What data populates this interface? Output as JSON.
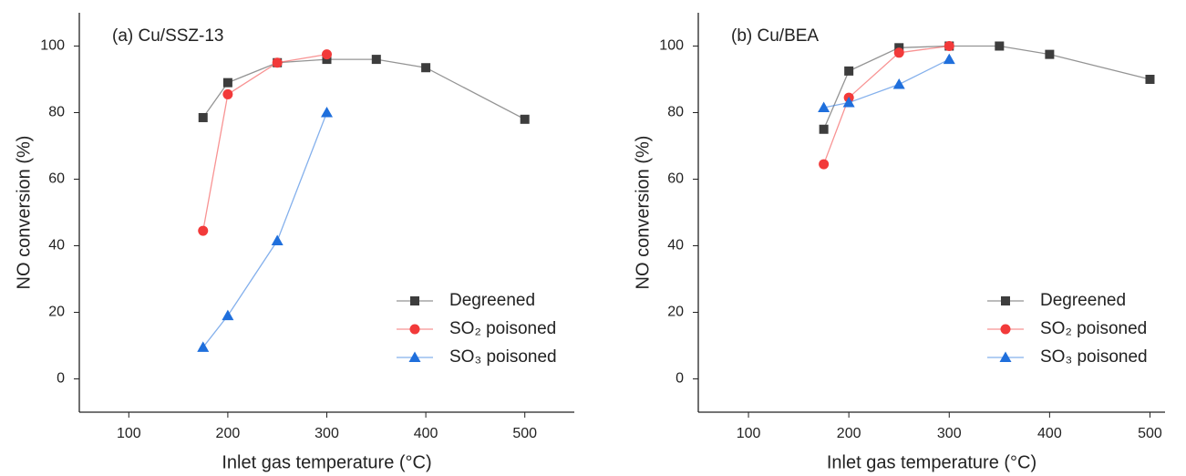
{
  "chart_data": [
    {
      "type": "line",
      "title": "(a) Cu/SSZ-13",
      "x_label": "Inlet gas temperature (°C)",
      "y_label": "NO conversion (%)",
      "xlim": [
        50,
        550
      ],
      "ylim": [
        -10,
        110
      ],
      "xticks": [
        100,
        200,
        300,
        400,
        500
      ],
      "yticks": [
        0,
        20,
        40,
        60,
        80,
        100
      ],
      "legend": "lower right",
      "series": [
        {
          "name": "Degreened",
          "color": "#3d3d3d",
          "marker": "square",
          "x": [
            175,
            200,
            250,
            300,
            350,
            400,
            500
          ],
          "values": [
            78.5,
            89,
            95,
            96,
            96,
            93.5,
            78
          ]
        },
        {
          "name": "SO₂ poisoned",
          "color": "#f23a3a",
          "marker": "circle",
          "x": [
            175,
            200,
            250,
            300
          ],
          "values": [
            44.5,
            85.5,
            95,
            97.5
          ]
        },
        {
          "name": "SO₃ poisoned",
          "color": "#1f6fdc",
          "marker": "triangle",
          "x": [
            175,
            200,
            250,
            300
          ],
          "values": [
            9.5,
            19,
            41.5,
            80
          ]
        }
      ]
    },
    {
      "type": "line",
      "title": "(b) Cu/BEA",
      "x_label": "Inlet gas temperature (°C)",
      "y_label": "NO conversion (%)",
      "xlim": [
        50,
        515
      ],
      "ylim": [
        -10,
        110
      ],
      "xticks": [
        100,
        200,
        300,
        400,
        500
      ],
      "yticks": [
        0,
        20,
        40,
        60,
        80,
        100
      ],
      "legend": "lower right",
      "series": [
        {
          "name": "Degreened",
          "color": "#3d3d3d",
          "marker": "square",
          "x": [
            175,
            200,
            250,
            300,
            350,
            400,
            500
          ],
          "values": [
            75,
            92.5,
            99.5,
            100,
            100,
            97.5,
            90
          ]
        },
        {
          "name": "SO₂ poisoned",
          "color": "#f23a3a",
          "marker": "circle",
          "x": [
            175,
            200,
            250,
            300
          ],
          "values": [
            64.5,
            84.5,
            98,
            100
          ]
        },
        {
          "name": "SO₃ poisoned",
          "color": "#1f6fdc",
          "marker": "triangle",
          "x": [
            175,
            200,
            250,
            300
          ],
          "values": [
            81.5,
            83,
            88.5,
            96
          ]
        }
      ]
    }
  ]
}
